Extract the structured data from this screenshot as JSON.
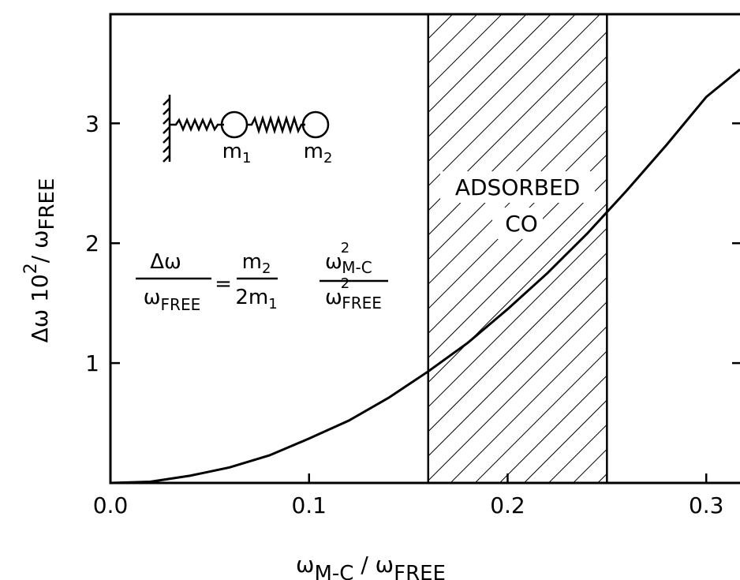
{
  "chart_data": {
    "type": "line",
    "x": [
      0,
      0.02,
      0.04,
      0.06,
      0.08,
      0.1,
      0.12,
      0.14,
      0.16,
      0.18,
      0.2,
      0.22,
      0.24,
      0.26,
      0.28,
      0.3,
      0.317
    ],
    "values": [
      0,
      0.01,
      0.06,
      0.13,
      0.23,
      0.37,
      0.52,
      0.71,
      0.93,
      1.17,
      1.45,
      1.75,
      2.08,
      2.44,
      2.82,
      3.22,
      3.45
    ],
    "color": "#000000",
    "xlim": [
      0,
      0.317
    ],
    "ylim": [
      0,
      3.95
    ],
    "xticks": [
      {
        "value": 0,
        "label": "0.0"
      },
      0.1,
      0.2,
      0.3
    ],
    "yticks": [
      1,
      2,
      3
    ],
    "band": [
      0.16,
      0.25
    ],
    "band_label": [
      "ADSORBED",
      "CO"
    ],
    "xlabel": [
      "ω",
      "M-C",
      " / ω",
      "FREE"
    ],
    "ylabel": [
      "Δω  10",
      "2",
      "/ ω",
      "FREE"
    ],
    "diagram_labels": [
      [
        "m",
        "1"
      ],
      [
        "m",
        "2"
      ]
    ],
    "formula": {
      "lhs_num": "Δω",
      "lhs_den": [
        "ω",
        "FREE"
      ],
      "eq": "=",
      "num1": [
        "m",
        "2"
      ],
      "den1": [
        "2m",
        "1"
      ],
      "num2": [
        "ω",
        "2",
        "M-C"
      ],
      "den2": [
        "ω",
        "2",
        "FREE"
      ]
    }
  }
}
